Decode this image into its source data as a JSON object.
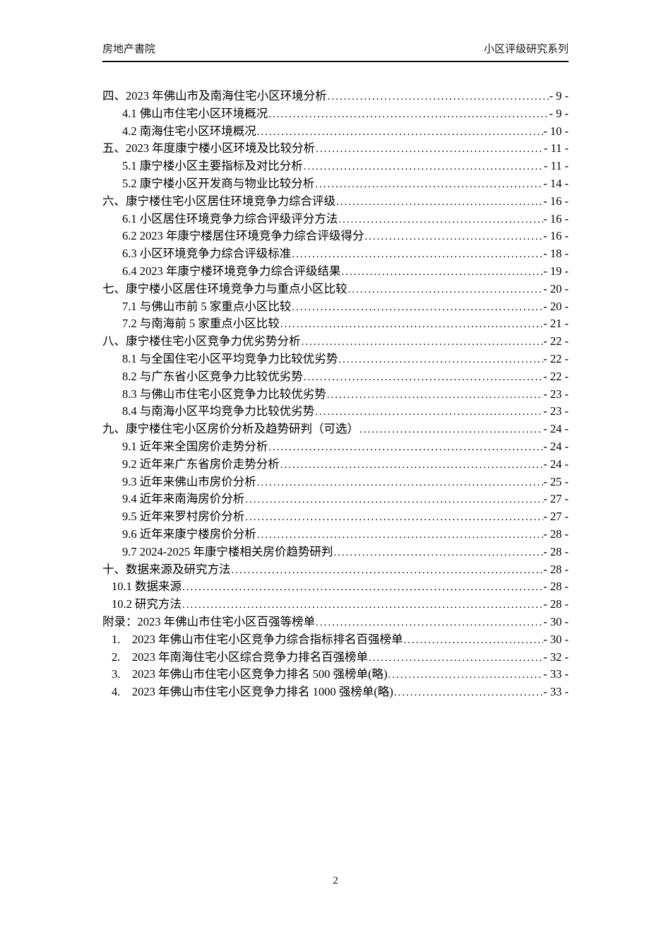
{
  "header": {
    "left": "房地产書院",
    "right": "小区评级研究系列"
  },
  "toc": {
    "items": [
      {
        "level": "chapter",
        "label": "四、2023 年佛山市及南海住宅小区环境分析",
        "page": "- 9 -"
      },
      {
        "level": "sub",
        "label": "4.1 佛山市住宅小区环境概况",
        "page": "- 9 -"
      },
      {
        "level": "sub",
        "label": "4.2 南海住宅小区环境概况",
        "page": "- 10 -"
      },
      {
        "level": "chapter",
        "label": "五、2023 年度康宁楼小区环境及比较分析",
        "page": "- 11 -"
      },
      {
        "level": "sub",
        "label": "5.1 康宁楼小区主要指标及对比分析",
        "page": "- 11 -"
      },
      {
        "level": "sub",
        "label": "5.2 康宁楼小区开发商与物业比较分析",
        "page": "- 14 -"
      },
      {
        "level": "chapter",
        "label": "六、康宁楼住宅小区居住环境竞争力综合评级",
        "page": "- 16 -"
      },
      {
        "level": "sub",
        "label": "6.1 小区居住环境竞争力综合评级评分方法",
        "page": "- 16 -"
      },
      {
        "level": "sub",
        "label": "6.2 2023 年康宁楼居住环境竞争力综合评级得分",
        "page": "- 16 -"
      },
      {
        "level": "sub",
        "label": "6.3 小区环境竞争力综合评级标准",
        "page": "- 18 -"
      },
      {
        "level": "sub",
        "label": "6.4 2023 年康宁楼环境竞争力综合评级结果",
        "page": "- 19 -"
      },
      {
        "level": "chapter",
        "label": "七、康宁楼小区居住环境竞争力与重点小区比较",
        "page": "- 20 -"
      },
      {
        "level": "sub",
        "label": "7.1 与佛山市前 5 家重点小区比较",
        "page": "- 20 -"
      },
      {
        "level": "sub",
        "label": "7.2 与南海前 5 家重点小区比较",
        "page": "- 21 -"
      },
      {
        "level": "chapter",
        "label": "八、康宁楼住宅小区竞争力优劣势分析",
        "page": "- 22 -"
      },
      {
        "level": "sub",
        "label": "8.1 与全国住宅小区平均竞争力比较优劣势",
        "page": "- 22 -"
      },
      {
        "level": "sub",
        "label": "8.2 与广东省小区竞争力比较优劣势",
        "page": "- 22 -"
      },
      {
        "level": "sub",
        "label": "8.3 与佛山市住宅小区竞争力比较优劣势",
        "page": "- 23 -"
      },
      {
        "level": "sub",
        "label": "8.4 与南海小区平均竞争力比较优劣势",
        "page": "- 23 -"
      },
      {
        "level": "chapter",
        "label": "九、康宁楼住宅小区房价分析及趋势研判（可选）",
        "page": "- 24 -"
      },
      {
        "level": "sub",
        "label": "9.1 近年来全国房价走势分析",
        "page": "- 24 -"
      },
      {
        "level": "sub",
        "label": "9.2 近年来广东省房价走势分析",
        "page": "- 24 -"
      },
      {
        "level": "sub",
        "label": "9.3 近年来佛山市房价分析",
        "page": "- 25 -"
      },
      {
        "level": "sub",
        "label": "9.4 近年来南海房价分析",
        "page": "- 27 -"
      },
      {
        "level": "sub",
        "label": "9.5 近年来罗村房价分析",
        "page": "- 27 -"
      },
      {
        "level": "sub",
        "label": "9.6 近年来康宁楼房价分析",
        "page": "- 28 -"
      },
      {
        "level": "sub",
        "label": "9.7 2024-2025 年康宁楼相关房价趋势研判",
        "page": "- 28 -"
      },
      {
        "level": "chapter",
        "label": "十、数据来源及研究方法",
        "page": "- 28 -"
      },
      {
        "level": "sub2",
        "label": "10.1 数据来源",
        "page": "- 28 -"
      },
      {
        "level": "sub2",
        "label": "10.2 研究方法",
        "page": "- 28 -"
      },
      {
        "level": "chapter",
        "label": "附录：2023 年佛山市住宅小区百强等榜单",
        "page": "- 30 -"
      },
      {
        "level": "sub2",
        "label": "1. 2023 年佛山市住宅小区竞争力综合指标排名百强榜单",
        "page": "- 30 -"
      },
      {
        "level": "sub2",
        "label": "2. 2023 年南海住宅小区综合竞争力排名百强榜单",
        "page": "- 32 -"
      },
      {
        "level": "sub2",
        "label": "3. 2023 年佛山市住宅小区竞争力排名 500 强榜单(略)",
        "page": "- 33 -"
      },
      {
        "level": "sub2",
        "label": "4. 2023 年佛山市住宅小区竞争力排名 1000 强榜单(略)",
        "page": "- 33 -"
      }
    ]
  },
  "footer": {
    "page_number": "2"
  }
}
